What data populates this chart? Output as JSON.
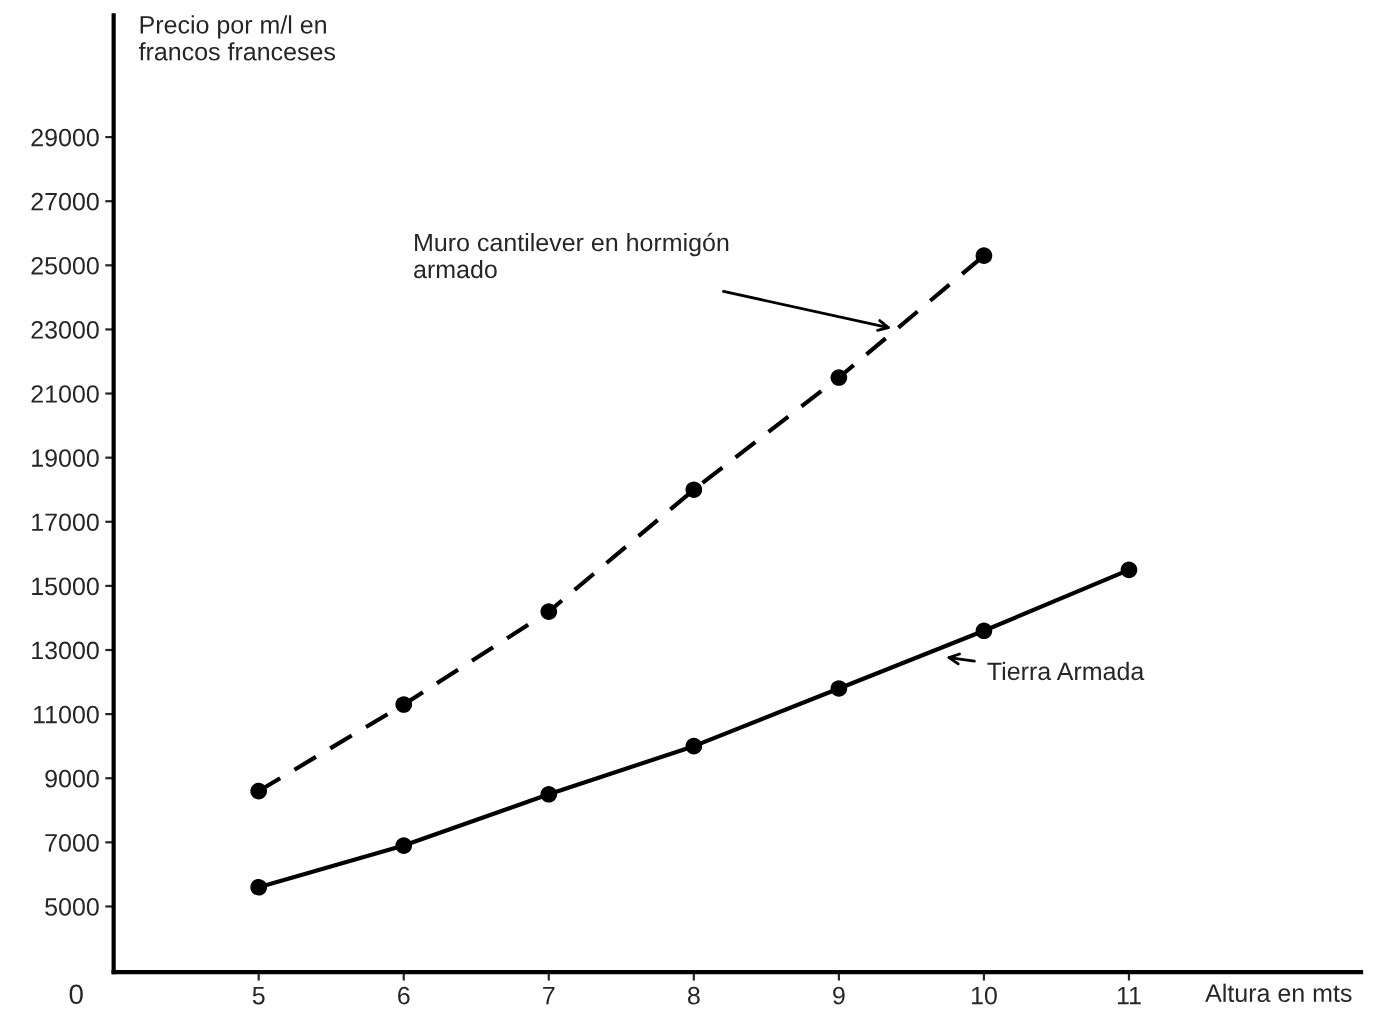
{
  "chart_data": {
    "type": "line",
    "xlabel": "Altura en mts",
    "ylabel": "Precio por m/l en\nfrancos franceses",
    "x": [
      5,
      6,
      7,
      8,
      9,
      10,
      11
    ],
    "series": [
      {
        "color": "#000000",
        "line_style": "dashed",
        "values": [
          8600,
          11300,
          14200,
          18000,
          21500,
          25300,
          null
        ]
      },
      {
        "color": "#000000",
        "line_style": "solid",
        "values": [
          5600,
          6900,
          8500,
          10000,
          11800,
          13600,
          15500
        ]
      }
    ],
    "marker": "circle",
    "xlim": [
      4,
      12.6
    ],
    "ylim": [
      2950,
      32800
    ],
    "xticks": [
      5,
      6,
      7,
      8,
      9,
      10,
      11
    ],
    "yticks": [
      5000,
      7000,
      9000,
      11000,
      13000,
      15000,
      17000,
      19000,
      21000,
      23000,
      25000,
      27000,
      29000
    ],
    "grid": false,
    "annotations": [
      {
        "text": "Muro cantilever en hormigón\narmado",
        "x": 9.4,
        "y": 23000
      },
      {
        "text": "Tierra Armada",
        "x": 9.7,
        "y": 12800
      },
      "0"
    ]
  }
}
